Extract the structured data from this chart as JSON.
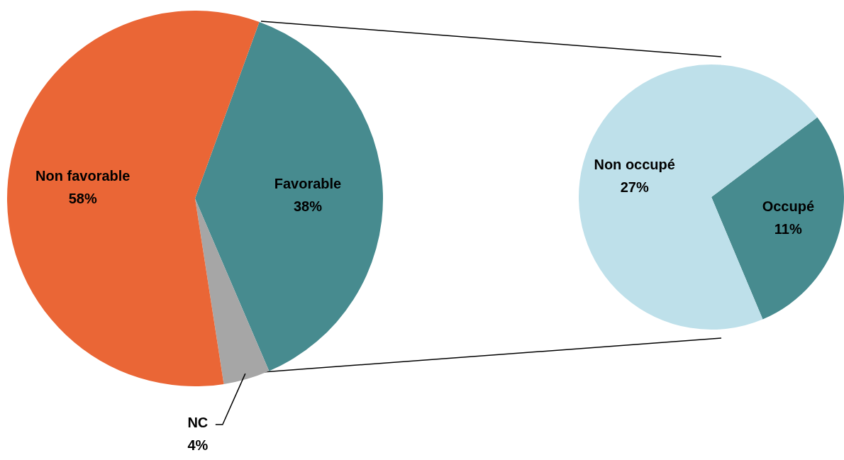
{
  "chart_data": [
    {
      "type": "pie",
      "categories": [
        "Favorable",
        "NC",
        "Non favorable"
      ],
      "values": [
        38,
        4,
        58
      ],
      "value_labels": [
        "38%",
        "4%",
        "58%"
      ],
      "colors": [
        "#478b8f",
        "#a6a6a6",
        "#ea6636"
      ],
      "data_labels": true,
      "legend": false
    },
    {
      "type": "pie",
      "categories": [
        "Occupé",
        "Non occupé"
      ],
      "values": [
        11,
        27
      ],
      "value_labels": [
        "11%",
        "27%"
      ],
      "colors": [
        "#478b8f",
        "#bee0ea"
      ],
      "data_labels": true,
      "legend": false
    }
  ]
}
